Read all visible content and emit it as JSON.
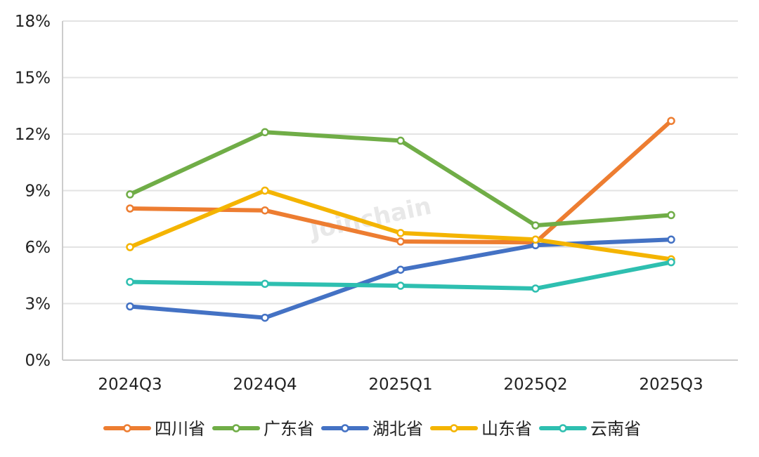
{
  "chart_data": {
    "type": "line",
    "title": "",
    "xlabel": "",
    "ylabel": "",
    "categories": [
      "2024Q3",
      "2024Q4",
      "2025Q1",
      "2025Q2",
      "2025Q3"
    ],
    "ylim": [
      0,
      18
    ],
    "yticks": [
      0,
      3,
      6,
      9,
      12,
      15,
      18
    ],
    "ytick_labels": [
      "0%",
      "3%",
      "6%",
      "9%",
      "12%",
      "15%",
      "18%"
    ],
    "grid": "horizontal",
    "legend_position": "bottom",
    "watermark": "Joinchain",
    "series": [
      {
        "name": "四川省",
        "color": "#ED7D31",
        "values": [
          8.05,
          7.95,
          6.3,
          6.25,
          12.7
        ]
      },
      {
        "name": "广东省",
        "color": "#70AD47",
        "values": [
          8.8,
          12.1,
          11.65,
          7.15,
          7.7
        ]
      },
      {
        "name": "湖北省",
        "color": "#4472C4",
        "values": [
          2.85,
          2.25,
          4.8,
          6.1,
          6.4
        ]
      },
      {
        "name": "山东省",
        "color": "#F4B400",
        "values": [
          6.0,
          9.0,
          6.75,
          6.4,
          5.35
        ]
      },
      {
        "name": "云南省",
        "color": "#2EBFB0",
        "values": [
          4.15,
          4.05,
          3.95,
          3.8,
          5.2
        ]
      }
    ]
  }
}
